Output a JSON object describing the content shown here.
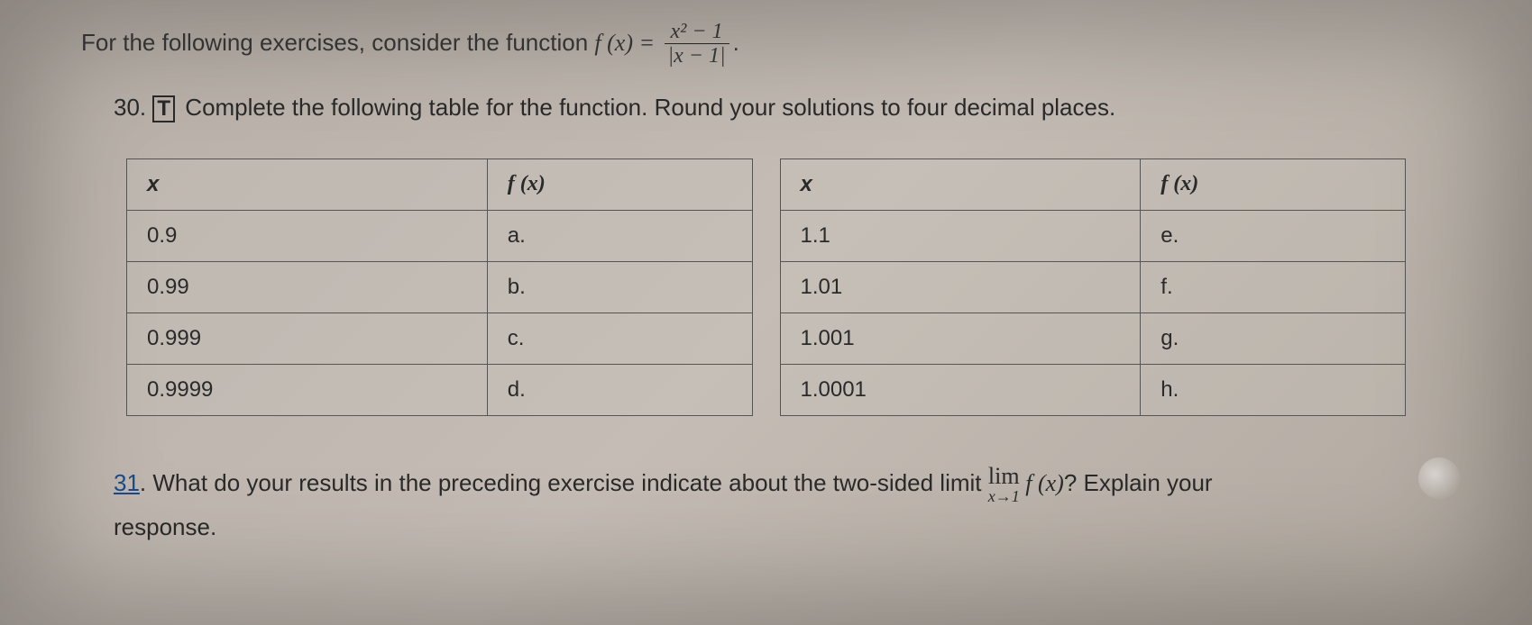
{
  "intro": {
    "prefix": "For the following exercises, consider the function ",
    "func_lhs": "f (x) = ",
    "frac_num": "x² − 1",
    "frac_den": "|x − 1|",
    "suffix": "."
  },
  "problem30": {
    "number": "30.",
    "tech": "T",
    "text": " Complete the following table for the function. Round your solutions to four decimal places."
  },
  "table_left": {
    "headers": {
      "x": "x",
      "fx": "f (x)"
    },
    "rows": [
      {
        "x": "0.9",
        "fx": "a."
      },
      {
        "x": "0.99",
        "fx": "b."
      },
      {
        "x": "0.999",
        "fx": "c."
      },
      {
        "x": "0.9999",
        "fx": "d."
      }
    ]
  },
  "table_right": {
    "headers": {
      "x": "x",
      "fx": "f (x)"
    },
    "rows": [
      {
        "x": "1.1",
        "fx": "e."
      },
      {
        "x": "1.01",
        "fx": "f."
      },
      {
        "x": "1.001",
        "fx": "g."
      },
      {
        "x": "1.0001",
        "fx": "h."
      }
    ]
  },
  "problem31": {
    "number": "31",
    "text_before": ". What do your results in the preceding exercise indicate about the two-sided limit ",
    "limit_top": "lim",
    "limit_bot": "x→1",
    "limit_func": " f (x)",
    "text_after": "? Explain your",
    "response": "response."
  },
  "colors": {
    "text": "#2a2a2a",
    "border": "#555555",
    "link": "#1a4b8c",
    "bg_start": "#b8b0a8",
    "bg_end": "#b0a89f"
  },
  "typography": {
    "body_fontsize": 26,
    "table_fontsize": 24
  }
}
